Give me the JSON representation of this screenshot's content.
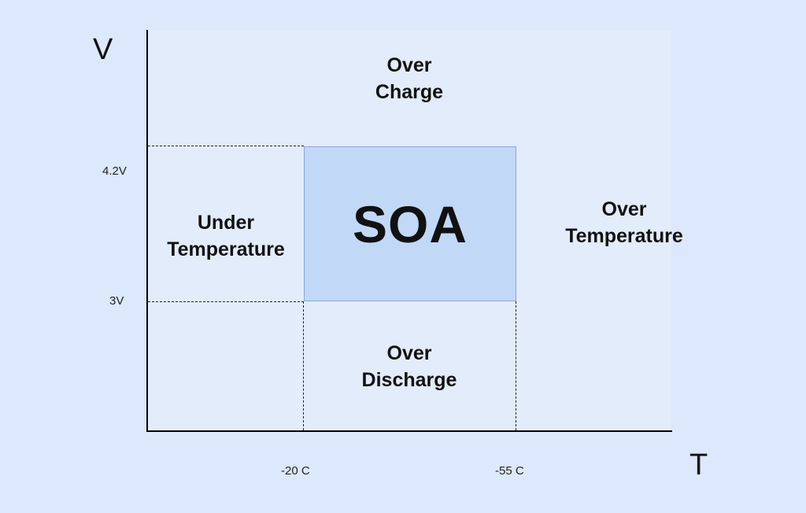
{
  "axes": {
    "y_label": "V",
    "x_label": "T"
  },
  "y_ticks": [
    "4.2V",
    "3V"
  ],
  "x_ticks": [
    "-20 C",
    "-55 C"
  ],
  "regions": {
    "soa": "SOA",
    "over_charge": [
      "Over",
      "Charge"
    ],
    "under_temperature": [
      "Under",
      "Temperature"
    ],
    "over_temperature": [
      "Over",
      "Temperature"
    ],
    "over_discharge": [
      "Over",
      "Discharge"
    ]
  },
  "colors": {
    "background": "#dce8fb",
    "soa_fill": "#c2d8f7",
    "soa_border": "#8aa9d6"
  }
}
